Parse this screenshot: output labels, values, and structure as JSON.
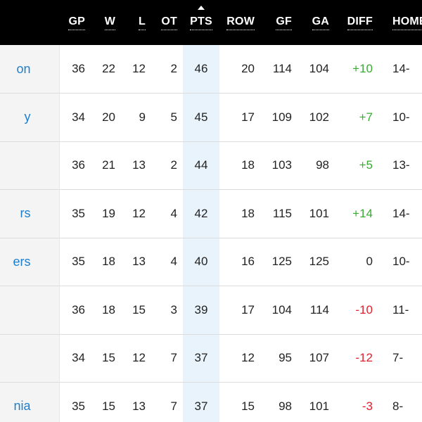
{
  "headers": {
    "gp": "GP",
    "w": "W",
    "l": "L",
    "ot": "OT",
    "pts": "PTS",
    "row": "ROW",
    "gf": "GF",
    "ga": "GA",
    "diff": "DIFF",
    "home": "HOME"
  },
  "colors": {
    "header_bg": "#000000",
    "team_link": "#1a7fd1",
    "pts_highlight": "#e8f3fb",
    "positive": "#3aaa35",
    "negative": "#e0202e"
  },
  "rows": [
    {
      "team": "on",
      "gp": "36",
      "w": "22",
      "l": "12",
      "ot": "2",
      "pts": "46",
      "row": "20",
      "gf": "114",
      "ga": "104",
      "diff": "+10",
      "home": "14-"
    },
    {
      "team": "y",
      "gp": "34",
      "w": "20",
      "l": "9",
      "ot": "5",
      "pts": "45",
      "row": "17",
      "gf": "109",
      "ga": "102",
      "diff": "+7",
      "home": "10-"
    },
    {
      "team": "",
      "gp": "36",
      "w": "21",
      "l": "13",
      "ot": "2",
      "pts": "44",
      "row": "18",
      "gf": "103",
      "ga": "98",
      "diff": "+5",
      "home": "13-"
    },
    {
      "team": "rs",
      "gp": "35",
      "w": "19",
      "l": "12",
      "ot": "4",
      "pts": "42",
      "row": "18",
      "gf": "115",
      "ga": "101",
      "diff": "+14",
      "home": "14-"
    },
    {
      "team": "ers",
      "gp": "35",
      "w": "18",
      "l": "13",
      "ot": "4",
      "pts": "40",
      "row": "16",
      "gf": "125",
      "ga": "125",
      "diff": "0",
      "home": "10-"
    },
    {
      "team": "",
      "gp": "36",
      "w": "18",
      "l": "15",
      "ot": "3",
      "pts": "39",
      "row": "17",
      "gf": "104",
      "ga": "114",
      "diff": "-10",
      "home": "11-"
    },
    {
      "team": "",
      "gp": "34",
      "w": "15",
      "l": "12",
      "ot": "7",
      "pts": "37",
      "row": "12",
      "gf": "95",
      "ga": "107",
      "diff": "-12",
      "home": "7-"
    },
    {
      "team": "nia",
      "gp": "35",
      "w": "15",
      "l": "13",
      "ot": "7",
      "pts": "37",
      "row": "15",
      "gf": "98",
      "ga": "101",
      "diff": "-3",
      "home": "8-"
    }
  ]
}
